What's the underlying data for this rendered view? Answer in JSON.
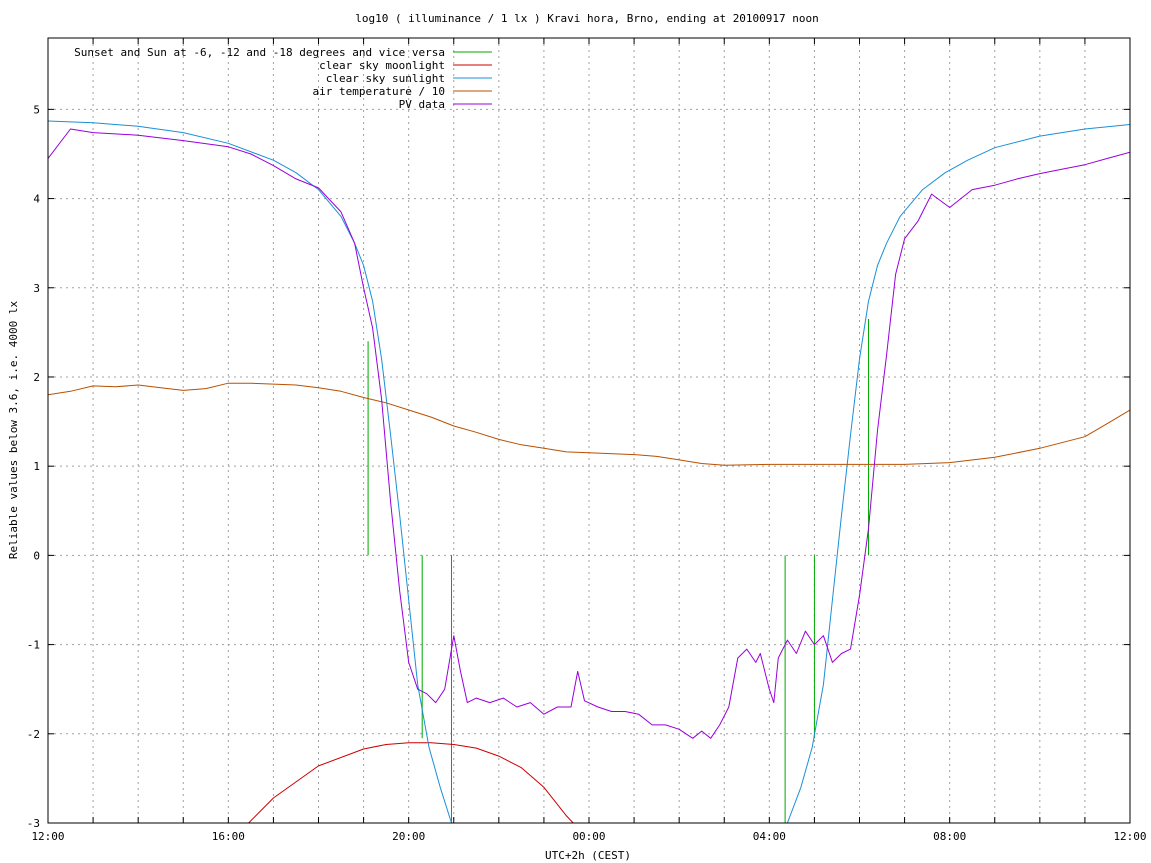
{
  "chart_data": {
    "type": "line",
    "title": "log10 ( illuminance / 1 lx ) Kravi hora, Brno, ending at 20100917 noon",
    "xlabel": "UTC+2h (CEST)",
    "ylabel": "Reliable values below 3.6, i.e. 4000 lx",
    "xlim": [
      0,
      24
    ],
    "ylim": [
      -3,
      5.8
    ],
    "x_unit": "hours since 12:00",
    "x_ticks": [
      {
        "x": 0,
        "label": "12:00"
      },
      {
        "x": 4,
        "label": "16:00"
      },
      {
        "x": 8,
        "label": "20:00"
      },
      {
        "x": 12,
        "label": "00:00"
      },
      {
        "x": 16,
        "label": "04:00"
      },
      {
        "x": 20,
        "label": "08:00"
      },
      {
        "x": 24,
        "label": "12:00"
      }
    ],
    "x_minor_ticks": [
      1,
      2,
      3,
      5,
      6,
      7,
      9,
      10,
      11,
      13,
      14,
      15,
      17,
      18,
      19,
      21,
      22,
      23
    ],
    "y_ticks": [
      {
        "y": -3,
        "label": "-3"
      },
      {
        "y": -2,
        "label": "-2"
      },
      {
        "y": -1,
        "label": "-1"
      },
      {
        "y": 0,
        "label": "0"
      },
      {
        "y": 1,
        "label": "1"
      },
      {
        "y": 2,
        "label": "2"
      },
      {
        "y": 3,
        "label": "3"
      },
      {
        "y": 4,
        "label": "4"
      },
      {
        "y": 5,
        "label": "5"
      }
    ],
    "grid": true,
    "legend_position": "top-left",
    "series": [
      {
        "name": "Sunset and Sun at -6, -12 and -18 degrees and vice versa",
        "color": "#00aa00",
        "style": "impulses",
        "points": [
          [
            7.1,
            2.4
          ],
          [
            7.65,
            0
          ],
          [
            8.3,
            -2.05
          ],
          [
            8.95,
            -3
          ],
          [
            16.35,
            -3
          ],
          [
            17.0,
            -2.05
          ],
          [
            17.65,
            0
          ],
          [
            18.2,
            2.65
          ]
        ]
      },
      {
        "name": "clear sky moonlight",
        "color": "#cc0000",
        "points": [
          [
            4.45,
            -3
          ],
          [
            5.0,
            -2.72
          ],
          [
            6.0,
            -2.36
          ],
          [
            7.0,
            -2.17
          ],
          [
            7.5,
            -2.12
          ],
          [
            8.0,
            -2.1
          ],
          [
            8.5,
            -2.1
          ],
          [
            9.0,
            -2.12
          ],
          [
            9.5,
            -2.16
          ],
          [
            10.0,
            -2.25
          ],
          [
            10.5,
            -2.38
          ],
          [
            11.0,
            -2.6
          ],
          [
            11.5,
            -2.92
          ],
          [
            11.65,
            -3
          ]
        ]
      },
      {
        "name": "clear sky sunlight",
        "color": "#1a8fd8",
        "points": [
          [
            0.0,
            4.87
          ],
          [
            1.0,
            4.85
          ],
          [
            2.0,
            4.81
          ],
          [
            3.0,
            4.74
          ],
          [
            4.0,
            4.62
          ],
          [
            5.0,
            4.43
          ],
          [
            5.5,
            4.29
          ],
          [
            6.0,
            4.1
          ],
          [
            6.5,
            3.8
          ],
          [
            6.8,
            3.5
          ],
          [
            7.0,
            3.25
          ],
          [
            7.2,
            2.85
          ],
          [
            7.4,
            2.2
          ],
          [
            7.6,
            1.35
          ],
          [
            7.8,
            0.45
          ],
          [
            8.0,
            -0.5
          ],
          [
            8.2,
            -1.45
          ],
          [
            8.45,
            -2.15
          ],
          [
            8.7,
            -2.6
          ],
          [
            8.95,
            -3.0
          ],
          [
            16.4,
            -3.0
          ],
          [
            16.7,
            -2.6
          ],
          [
            16.95,
            -2.15
          ],
          [
            17.2,
            -1.45
          ],
          [
            17.4,
            -0.5
          ],
          [
            17.6,
            0.45
          ],
          [
            17.8,
            1.35
          ],
          [
            18.0,
            2.2
          ],
          [
            18.2,
            2.85
          ],
          [
            18.4,
            3.25
          ],
          [
            18.6,
            3.5
          ],
          [
            18.9,
            3.8
          ],
          [
            19.4,
            4.1
          ],
          [
            19.9,
            4.29
          ],
          [
            20.4,
            4.43
          ],
          [
            21.0,
            4.57
          ],
          [
            22.0,
            4.7
          ],
          [
            23.0,
            4.78
          ],
          [
            24.0,
            4.83
          ]
        ]
      },
      {
        "name": "air temperature / 10",
        "color": "#b85000",
        "points": [
          [
            0.0,
            1.8
          ],
          [
            0.5,
            1.84
          ],
          [
            1.0,
            1.9
          ],
          [
            1.5,
            1.89
          ],
          [
            2.0,
            1.91
          ],
          [
            2.5,
            1.88
          ],
          [
            3.0,
            1.85
          ],
          [
            3.5,
            1.87
          ],
          [
            4.0,
            1.93
          ],
          [
            4.5,
            1.93
          ],
          [
            5.0,
            1.92
          ],
          [
            5.5,
            1.91
          ],
          [
            6.0,
            1.88
          ],
          [
            6.5,
            1.84
          ],
          [
            7.0,
            1.77
          ],
          [
            7.5,
            1.71
          ],
          [
            8.0,
            1.63
          ],
          [
            8.5,
            1.55
          ],
          [
            9.0,
            1.45
          ],
          [
            9.5,
            1.38
          ],
          [
            10.0,
            1.3
          ],
          [
            10.5,
            1.24
          ],
          [
            11.0,
            1.2
          ],
          [
            11.5,
            1.16
          ],
          [
            12.0,
            1.15
          ],
          [
            13.0,
            1.13
          ],
          [
            13.5,
            1.11
          ],
          [
            14.0,
            1.07
          ],
          [
            14.5,
            1.03
          ],
          [
            15.0,
            1.01
          ],
          [
            16.0,
            1.02
          ],
          [
            17.0,
            1.02
          ],
          [
            18.0,
            1.02
          ],
          [
            19.0,
            1.02
          ],
          [
            20.0,
            1.04
          ],
          [
            21.0,
            1.1
          ],
          [
            22.0,
            1.2
          ],
          [
            23.0,
            1.33
          ],
          [
            23.5,
            1.48
          ],
          [
            24.0,
            1.63
          ]
        ]
      },
      {
        "name": "PV data",
        "color": "#9900dd",
        "points": [
          [
            0.0,
            4.45
          ],
          [
            0.5,
            4.78
          ],
          [
            1.0,
            4.74
          ],
          [
            2.0,
            4.71
          ],
          [
            3.0,
            4.65
          ],
          [
            4.0,
            4.58
          ],
          [
            4.5,
            4.5
          ],
          [
            5.0,
            4.37
          ],
          [
            5.5,
            4.22
          ],
          [
            6.0,
            4.12
          ],
          [
            6.5,
            3.85
          ],
          [
            6.8,
            3.5
          ],
          [
            7.0,
            3.0
          ],
          [
            7.2,
            2.55
          ],
          [
            7.4,
            1.75
          ],
          [
            7.6,
            0.6
          ],
          [
            7.8,
            -0.4
          ],
          [
            8.0,
            -1.2
          ],
          [
            8.2,
            -1.5
          ],
          [
            8.4,
            -1.55
          ],
          [
            8.6,
            -1.65
          ],
          [
            8.8,
            -1.5
          ],
          [
            9.0,
            -0.9
          ],
          [
            9.15,
            -1.3
          ],
          [
            9.3,
            -1.65
          ],
          [
            9.5,
            -1.6
          ],
          [
            9.8,
            -1.65
          ],
          [
            10.1,
            -1.6
          ],
          [
            10.4,
            -1.7
          ],
          [
            10.7,
            -1.65
          ],
          [
            11.0,
            -1.78
          ],
          [
            11.3,
            -1.7
          ],
          [
            11.6,
            -1.7
          ],
          [
            11.75,
            -1.3
          ],
          [
            11.9,
            -1.63
          ],
          [
            12.2,
            -1.7
          ],
          [
            12.5,
            -1.75
          ],
          [
            12.8,
            -1.75
          ],
          [
            13.1,
            -1.78
          ],
          [
            13.4,
            -1.9
          ],
          [
            13.7,
            -1.9
          ],
          [
            14.0,
            -1.95
          ],
          [
            14.3,
            -2.05
          ],
          [
            14.5,
            -1.97
          ],
          [
            14.7,
            -2.05
          ],
          [
            14.9,
            -1.9
          ],
          [
            15.1,
            -1.7
          ],
          [
            15.3,
            -1.15
          ],
          [
            15.5,
            -1.05
          ],
          [
            15.7,
            -1.2
          ],
          [
            15.8,
            -1.1
          ],
          [
            16.0,
            -1.5
          ],
          [
            16.1,
            -1.65
          ],
          [
            16.2,
            -1.15
          ],
          [
            16.4,
            -0.95
          ],
          [
            16.6,
            -1.1
          ],
          [
            16.8,
            -0.85
          ],
          [
            17.0,
            -1.0
          ],
          [
            17.2,
            -0.9
          ],
          [
            17.4,
            -1.2
          ],
          [
            17.6,
            -1.1
          ],
          [
            17.8,
            -1.05
          ],
          [
            18.0,
            -0.45
          ],
          [
            18.2,
            0.3
          ],
          [
            18.4,
            1.4
          ],
          [
            18.6,
            2.25
          ],
          [
            18.8,
            3.15
          ],
          [
            19.0,
            3.55
          ],
          [
            19.3,
            3.75
          ],
          [
            19.6,
            4.05
          ],
          [
            20.0,
            3.9
          ],
          [
            20.5,
            4.1
          ],
          [
            21.0,
            4.15
          ],
          [
            21.5,
            4.22
          ],
          [
            22.0,
            4.28
          ],
          [
            22.5,
            4.33
          ],
          [
            23.0,
            4.38
          ],
          [
            23.5,
            4.45
          ],
          [
            24.0,
            4.52
          ]
        ]
      }
    ]
  }
}
